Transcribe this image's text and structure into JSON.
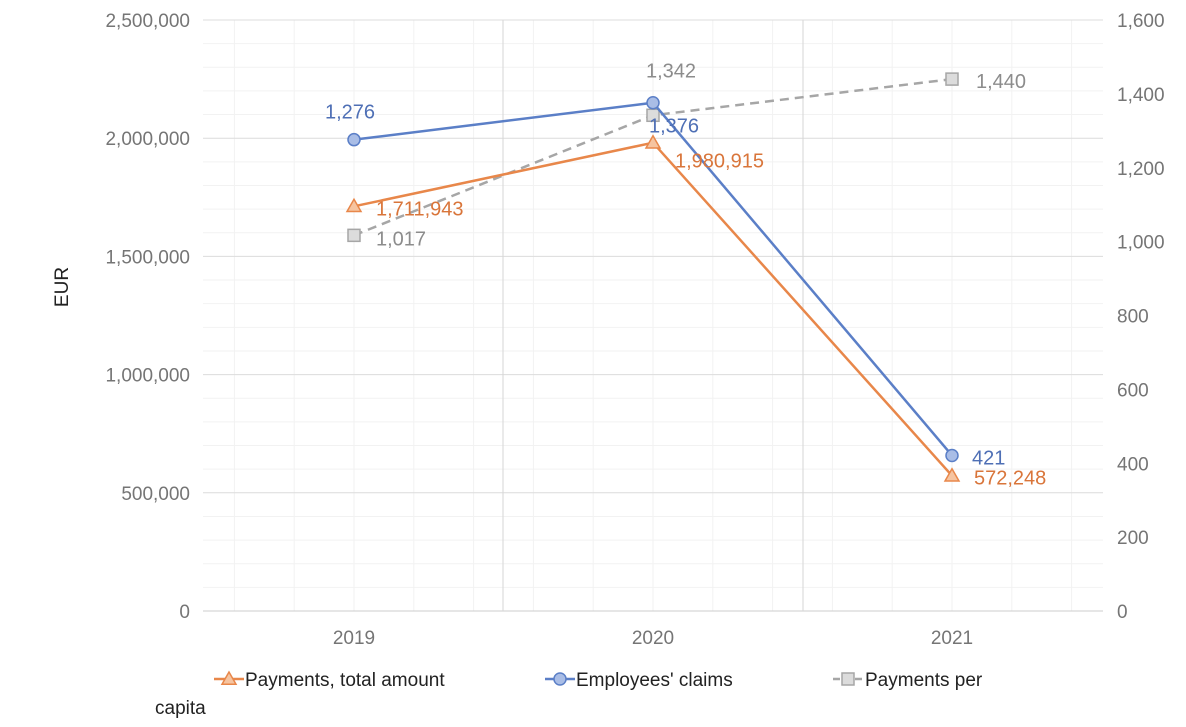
{
  "chart_data": {
    "type": "line",
    "categories": [
      "2019",
      "2020",
      "2021"
    ],
    "ylabel": "EUR",
    "ylim_left": [
      0,
      2500000
    ],
    "left_ticks": [
      "0",
      "500,000",
      "1,000,000",
      "1,500,000",
      "2,000,000",
      "2,500,000"
    ],
    "ylim_right": [
      0,
      1600
    ],
    "right_ticks": [
      "0",
      "200",
      "400",
      "600",
      "800",
      "1,000",
      "1,200",
      "1,400",
      "1,600"
    ],
    "grid": true,
    "legend_position": "bottom",
    "series": [
      {
        "name": "Payments, total amount",
        "axis": "left",
        "marker": "triangle",
        "line": "solid",
        "color": "#e8874a",
        "values": [
          1711943,
          1980915,
          572248
        ],
        "labels": [
          "1,711,943",
          "1,980,915",
          "572,248"
        ]
      },
      {
        "name": "Employees' claims",
        "axis": "right",
        "marker": "circle",
        "line": "solid",
        "color": "#5b7fc7",
        "values": [
          1276,
          1376,
          421
        ],
        "labels": [
          "1,276",
          "1,376",
          "421"
        ]
      },
      {
        "name": "Payments per capita",
        "axis": "right",
        "marker": "square",
        "line": "dashed",
        "color": "#a6a6a6",
        "values": [
          1017,
          1342,
          1440
        ],
        "labels": [
          "1,017",
          "1,342",
          "1,440"
        ]
      }
    ]
  }
}
